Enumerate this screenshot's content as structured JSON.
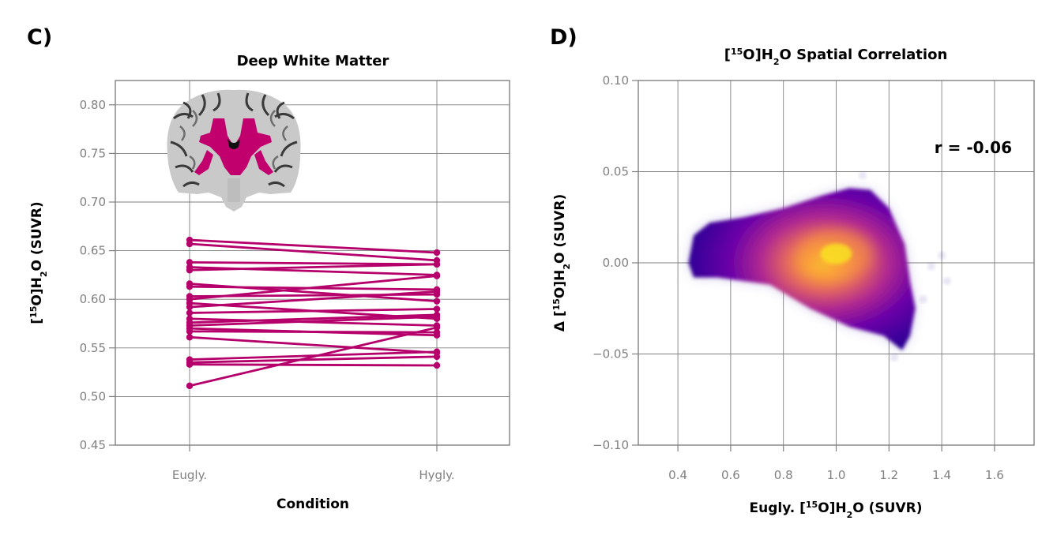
{
  "chart_data": [
    {
      "panel_label": "C)",
      "type": "line",
      "title": "Deep White Matter",
      "xlabel": "Condition",
      "ylabel_parts": [
        "[",
        "15",
        "O]H",
        "2",
        "O (SUVR)"
      ],
      "categories": [
        "Eugly.",
        "Hygly."
      ],
      "ylim": [
        0.45,
        0.825
      ],
      "yticks": [
        0.45,
        0.5,
        0.55,
        0.6,
        0.65,
        0.7,
        0.75,
        0.8
      ],
      "ytick_labels": [
        "0.45",
        "0.50",
        "0.55",
        "0.60",
        "0.65",
        "0.70",
        "0.75",
        "0.80"
      ],
      "grid": true,
      "line_color": "#b5006b",
      "inset": "coronal brain slice with deep white matter region highlighted",
      "subjects": [
        [
          0.661,
          0.648
        ],
        [
          0.657,
          0.64
        ],
        [
          0.638,
          0.636
        ],
        [
          0.633,
          0.625
        ],
        [
          0.63,
          0.636
        ],
        [
          0.616,
          0.598
        ],
        [
          0.613,
          0.61
        ],
        [
          0.603,
          0.605
        ],
        [
          0.6,
          0.624
        ],
        [
          0.596,
          0.58
        ],
        [
          0.592,
          0.608
        ],
        [
          0.586,
          0.59
        ],
        [
          0.58,
          0.573
        ],
        [
          0.576,
          0.584
        ],
        [
          0.573,
          0.582
        ],
        [
          0.57,
          0.563
        ],
        [
          0.567,
          0.566
        ],
        [
          0.561,
          0.545
        ],
        [
          0.538,
          0.546
        ],
        [
          0.535,
          0.541
        ],
        [
          0.533,
          0.532
        ],
        [
          0.511,
          0.571
        ]
      ]
    },
    {
      "panel_label": "D)",
      "type": "scatter",
      "title_parts": [
        "[",
        "15",
        "O]H",
        "2",
        "O Spatial Correlation"
      ],
      "xlabel_parts": [
        "Eugly. [",
        "15",
        "O]H",
        "2",
        "O (SUVR)"
      ],
      "ylabel_parts": [
        "Δ [",
        "15",
        "O]H",
        "2",
        "O (SUVR)"
      ],
      "xlim": [
        0.25,
        1.75
      ],
      "ylim": [
        -0.1,
        0.1
      ],
      "xticks": [
        0.4,
        0.6,
        0.8,
        1.0,
        1.2,
        1.4,
        1.6
      ],
      "xtick_labels": [
        "0.4",
        "0.6",
        "0.8",
        "1.0",
        "1.2",
        "1.4",
        "1.6"
      ],
      "yticks": [
        -0.1,
        -0.05,
        0.0,
        0.05,
        0.1
      ],
      "ytick_labels": [
        "−0.10",
        "−0.05",
        "0.00",
        "0.05",
        "0.10"
      ],
      "grid": true,
      "colormap": "plasma density",
      "annotation": "r = -0.06",
      "density_outline": [
        [
          0.44,
          0.0
        ],
        [
          0.46,
          0.015
        ],
        [
          0.52,
          0.022
        ],
        [
          0.65,
          0.025
        ],
        [
          0.8,
          0.03
        ],
        [
          0.95,
          0.037
        ],
        [
          1.05,
          0.041
        ],
        [
          1.13,
          0.04
        ],
        [
          1.2,
          0.03
        ],
        [
          1.26,
          0.01
        ],
        [
          1.28,
          -0.01
        ],
        [
          1.3,
          -0.025
        ],
        [
          1.28,
          -0.04
        ],
        [
          1.25,
          -0.048
        ],
        [
          1.18,
          -0.04
        ],
        [
          1.05,
          -0.035
        ],
        [
          0.9,
          -0.025
        ],
        [
          0.75,
          -0.012
        ],
        [
          0.55,
          -0.008
        ],
        [
          0.46,
          -0.008
        ],
        [
          0.44,
          0.0
        ]
      ],
      "density_peak": [
        1.0,
        0.005
      ]
    }
  ]
}
